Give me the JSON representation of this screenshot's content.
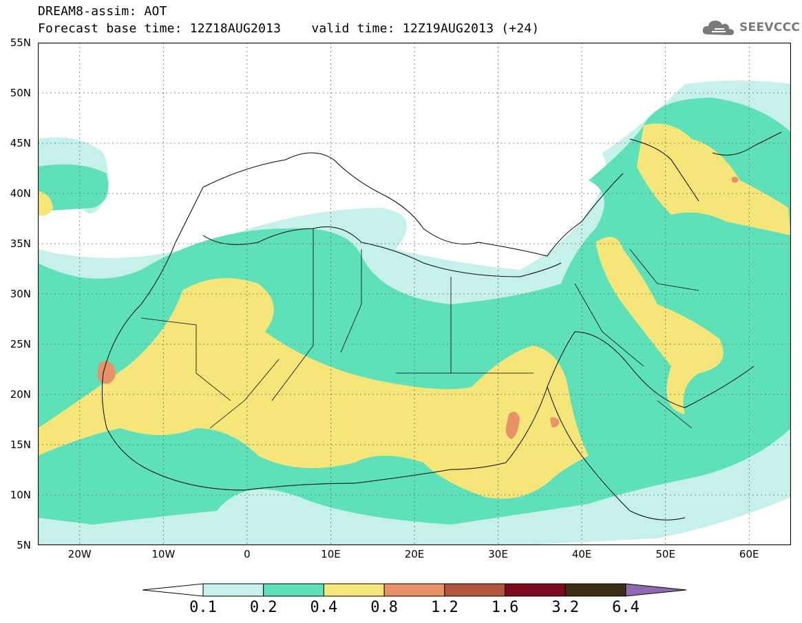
{
  "header": {
    "title": "DREAM8-assim: AOT",
    "base_time": "Forecast base time: 12Z18AUG2013",
    "valid_time": "valid time: 12Z19AUG2013 (+24)"
  },
  "logo": {
    "text": "SEEVCCC",
    "icon": "cloud-icon"
  },
  "map": {
    "lat_labels": [
      "55N",
      "50N",
      "45N",
      "40N",
      "35N",
      "30N",
      "25N",
      "20N",
      "15N",
      "10N",
      "5N"
    ],
    "lon_labels": [
      "20W",
      "10W",
      "0",
      "10E",
      "20E",
      "30E",
      "40E",
      "50E",
      "60E"
    ],
    "lat_values": [
      55,
      50,
      45,
      40,
      35,
      30,
      25,
      20,
      15,
      10,
      5
    ],
    "lon_values": [
      -20,
      -10,
      0,
      10,
      20,
      30,
      40,
      50,
      60
    ],
    "lon_range": [
      -25,
      65
    ],
    "lat_range": [
      5,
      55
    ],
    "grid": true
  },
  "colorbar": {
    "levels": [
      "0.1",
      "0.2",
      "0.4",
      "0.8",
      "1.2",
      "1.6",
      "3.2",
      "6.4"
    ],
    "colors": [
      "#ffffff",
      "#c6f0ea",
      "#5ee0b9",
      "#f6e67a",
      "#e8926a",
      "#b2553f",
      "#7d0a1e",
      "#3d2c16",
      "#8e6bb0"
    ]
  }
}
